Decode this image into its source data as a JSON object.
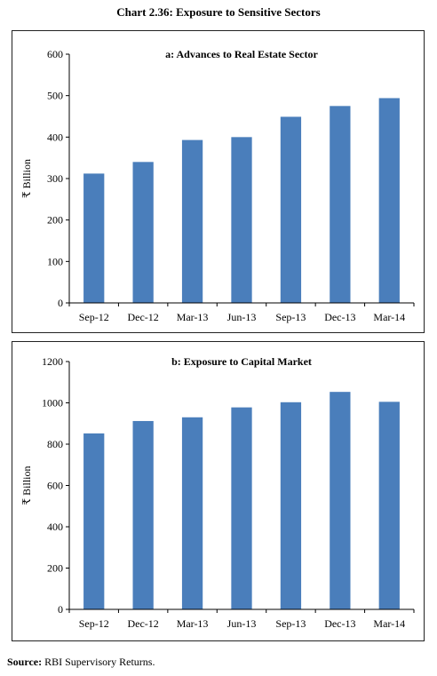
{
  "page": {
    "title": "Chart 2.36: Exposure to Sensitive Sectors",
    "source_label": "Source:",
    "source_text": " RBI Supervisory Returns."
  },
  "colors": {
    "bar": "#4a7ebb",
    "axis": "#000000"
  },
  "chart_data": [
    {
      "type": "bar",
      "title": "a: Advances to Real Estate Sector",
      "xlabel": "",
      "ylabel": "₹ Billion",
      "categories": [
        "Sep-12",
        "Dec-12",
        "Mar-13",
        "Jun-13",
        "Sep-13",
        "Dec-13",
        "Mar-14"
      ],
      "values": [
        312,
        340,
        393,
        400,
        449,
        475,
        494
      ],
      "ylim": [
        0,
        600
      ],
      "yticks": [
        0,
        100,
        200,
        300,
        400,
        500,
        600
      ],
      "grid": false,
      "legend": "none"
    },
    {
      "type": "bar",
      "title": "b: Exposure to Capital Market",
      "xlabel": "",
      "ylabel": "₹ Billion",
      "categories": [
        "Sep-12",
        "Dec-12",
        "Mar-13",
        "Jun-13",
        "Sep-13",
        "Dec-13",
        "Mar-14"
      ],
      "values": [
        852,
        912,
        930,
        978,
        1003,
        1053,
        1005
      ],
      "ylim": [
        0,
        1200
      ],
      "yticks": [
        0,
        200,
        400,
        600,
        800,
        1000,
        1200
      ],
      "grid": false,
      "legend": "none"
    }
  ]
}
